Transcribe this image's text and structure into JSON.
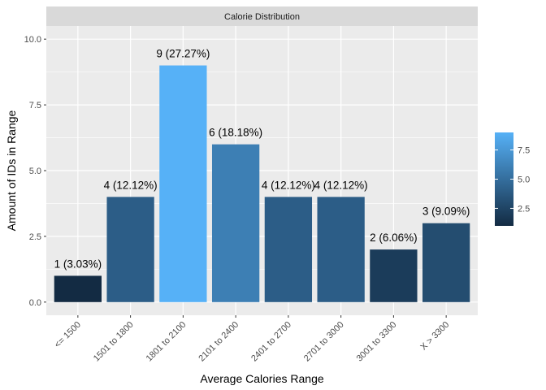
{
  "chart_data": {
    "type": "bar",
    "facet_title": "Calorie Distribution",
    "xlabel": "Average Calories Range",
    "ylabel": "Amount of IDs in Range",
    "categories": [
      "<= 1500",
      "1501 to 1800",
      "1801 to 2100",
      "2101 to 2400",
      "2401 to 2700",
      "2701 to 3000",
      "3001 to 3300",
      "X > 3300"
    ],
    "values": [
      1,
      4,
      9,
      6,
      4,
      4,
      2,
      3
    ],
    "bar_labels": [
      "1 (3.03%)",
      "4 (12.12%)",
      "9 (27.27%)",
      "6 (18.18%)",
      "4 (12.12%)",
      "4 (12.12%)",
      "2 (6.06%)",
      "3 (9.09%)"
    ],
    "ylim": [
      0,
      10
    ],
    "yticks": [
      0,
      2.5,
      5,
      7.5,
      10
    ],
    "ytick_labels": [
      "0.0",
      "2.5",
      "5.0",
      "7.5",
      "10.0"
    ],
    "grid": true,
    "legend": {
      "position": "right",
      "type": "colorbar",
      "ticks": [
        2.5,
        5,
        7.5
      ],
      "tick_labels": [
        "2.5",
        "5.0",
        "7.5"
      ],
      "range": [
        1,
        9
      ],
      "color_low": "#132B43",
      "color_high": "#56B1F7"
    },
    "colors": {
      "panel_background": "#EBEBEB",
      "grid": "#FFFFFF",
      "strip_background": "#D9D9D9"
    }
  }
}
